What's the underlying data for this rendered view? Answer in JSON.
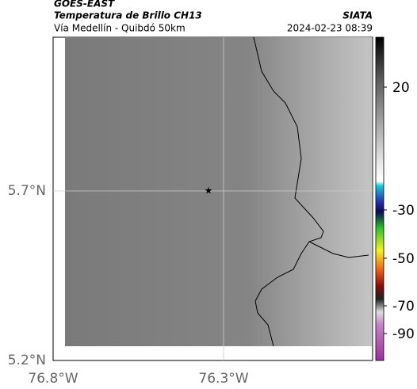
{
  "header": {
    "title": "GOES-EAST",
    "subtitle": "Temperatura de Brillo CH13",
    "source": "SIATA",
    "location": "Vía Medellín - Quibdó 50km",
    "datetime": "2024-02-23 08:39"
  },
  "map": {
    "lat_labels": [
      "5.7°N",
      "5.2°N"
    ],
    "lon_labels": [
      "76.8°W",
      "76.3°W"
    ]
  },
  "colorbar": {
    "tick_labels": [
      "20",
      "-30",
      "-50",
      "-70",
      "-90"
    ]
  }
}
